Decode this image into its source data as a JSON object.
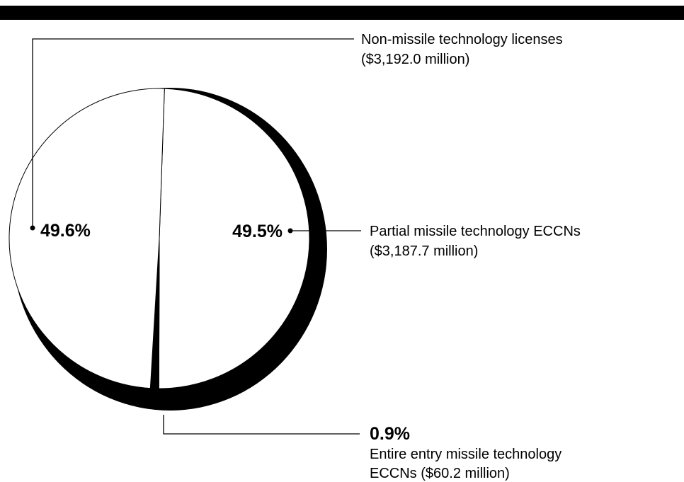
{
  "chart_data": {
    "type": "pie",
    "style": "3d",
    "slices": [
      {
        "percent_label": "49.6%",
        "value": 49.6,
        "name_lines": [
          "Non-missile technology licenses",
          "($3,192.0 million)"
        ],
        "fill": "#ffffff"
      },
      {
        "percent_label": "49.5%",
        "value": 49.5,
        "name_lines": [
          "Partial missile technology ECCNs",
          "($3,187.7 million)"
        ],
        "fill": "#ffffff"
      },
      {
        "percent_label": "0.9%",
        "value": 0.9,
        "name_lines": [
          "Entire entry missile technology",
          "ECCNs ($60.2 million)"
        ],
        "fill": "#000000"
      }
    ]
  }
}
